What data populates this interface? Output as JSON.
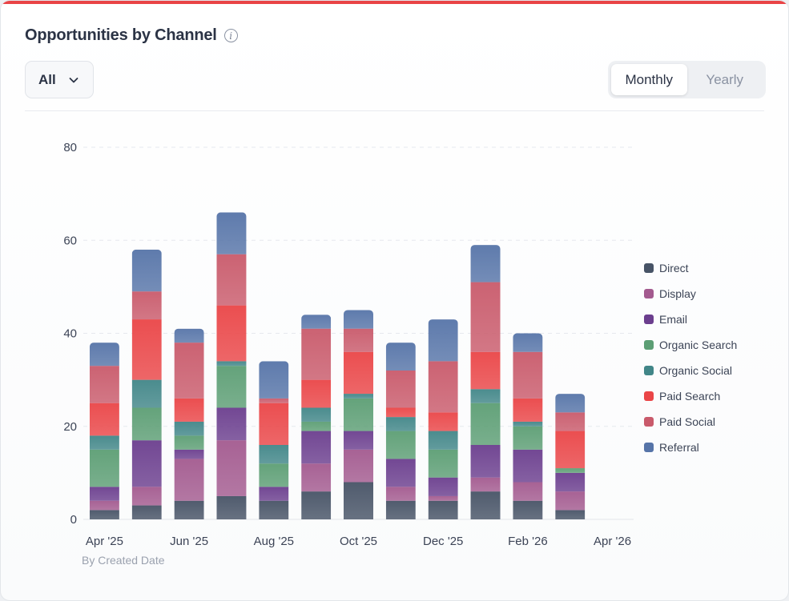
{
  "title": "Opportunities by Channel",
  "info_icon": "info-icon",
  "filter": {
    "selected": "All",
    "icon": "chevron-down-icon"
  },
  "period_toggle": {
    "options": [
      "Monthly",
      "Yearly"
    ],
    "active": "Monthly"
  },
  "footnote": "By Created Date",
  "colors": {
    "accent": "#e94446",
    "Direct": "#475366",
    "Display": "#a35a8f",
    "Email": "#6b3e8e",
    "Organic Search": "#5c9e74",
    "Organic Social": "#418688",
    "Paid Search": "#ea4547",
    "Paid Social": "#c95a6b",
    "Referral": "#5674a8"
  },
  "chart_data": {
    "type": "bar",
    "stacked": true,
    "categories": [
      "Apr '25",
      "May '25",
      "Jun '25",
      "Jul '25",
      "Aug '25",
      "Sep '25",
      "Oct '25",
      "Nov '25",
      "Dec '25",
      "Jan '26",
      "Feb '26",
      "Mar '26"
    ],
    "x_tick_labels": [
      "Apr '25",
      "Jun '25",
      "Aug '25",
      "Oct '25",
      "Dec '25",
      "Feb '26",
      "Apr '26"
    ],
    "ylim": [
      0,
      80
    ],
    "y_ticks": [
      0,
      20,
      40,
      60,
      80
    ],
    "grid": true,
    "legend_position": "right",
    "series": [
      {
        "name": "Direct",
        "values": [
          2,
          3,
          4,
          5,
          4,
          6,
          8,
          4,
          4,
          6,
          4,
          2
        ]
      },
      {
        "name": "Display",
        "values": [
          2,
          4,
          9,
          12,
          0,
          6,
          7,
          3,
          1,
          3,
          4,
          4
        ]
      },
      {
        "name": "Email",
        "values": [
          3,
          10,
          2,
          7,
          3,
          7,
          4,
          6,
          4,
          7,
          7,
          4
        ]
      },
      {
        "name": "Organic Search",
        "values": [
          8,
          7,
          3,
          9,
          5,
          2,
          7,
          6,
          6,
          9,
          5,
          1
        ]
      },
      {
        "name": "Organic Social",
        "values": [
          3,
          6,
          3,
          1,
          4,
          3,
          1,
          3,
          4,
          3,
          1,
          0
        ]
      },
      {
        "name": "Paid Search",
        "values": [
          7,
          13,
          5,
          12,
          9,
          6,
          9,
          2,
          4,
          8,
          5,
          8
        ]
      },
      {
        "name": "Paid Social",
        "values": [
          8,
          6,
          12,
          11,
          1,
          11,
          5,
          8,
          11,
          15,
          10,
          4
        ]
      },
      {
        "name": "Referral",
        "values": [
          5,
          9,
          3,
          9,
          8,
          3,
          4,
          6,
          9,
          8,
          4,
          4
        ]
      }
    ]
  }
}
